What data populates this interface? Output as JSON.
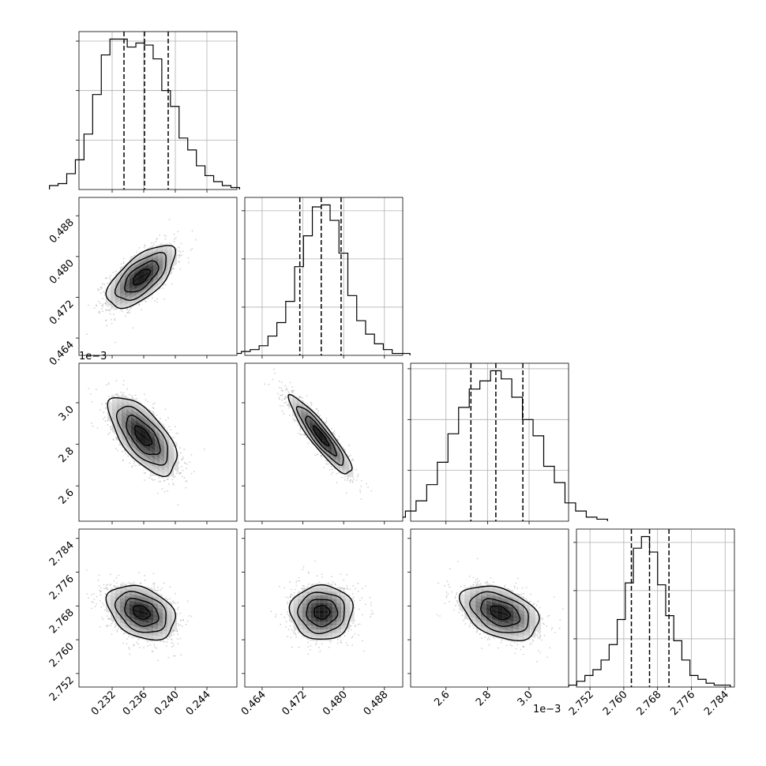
{
  "chart_data": {
    "type": "corner",
    "grid": true,
    "parameters": [
      {
        "range": [
          0.2278,
          0.2478
        ],
        "ticks": [
          0.232,
          0.236,
          0.24,
          0.244
        ],
        "tick_labels": [
          "0.232",
          "0.236",
          "0.240",
          "0.244"
        ],
        "quantiles": [
          0.2335,
          0.2361,
          0.2391
        ]
      },
      {
        "range": [
          0.4606,
          0.4916
        ],
        "ticks": [
          0.464,
          0.472,
          0.48,
          0.488
        ],
        "tick_labels": [
          "0.464",
          "0.472",
          "0.480",
          "0.488"
        ],
        "quantiles": [
          0.4714,
          0.4756,
          0.4795
        ]
      },
      {
        "range": [
          2.43,
          3.19
        ],
        "ticks": [
          2.6,
          2.8,
          3.0
        ],
        "tick_labels": [
          "2.6",
          "2.8",
          "3.0"
        ],
        "quantiles": [
          2.72,
          2.84,
          2.97
        ],
        "offset_label": "1e−3"
      },
      {
        "range": [
          2.7488,
          2.7862
        ],
        "ticks": [
          2.752,
          2.76,
          2.768,
          2.776,
          2.784
        ],
        "tick_labels": [
          "2.752",
          "2.760",
          "2.768",
          "2.776",
          "2.784"
        ],
        "quantiles": [
          2.7618,
          2.7661,
          2.7707
        ]
      }
    ],
    "histograms": [
      [
        2,
        3,
        8,
        15,
        28,
        48,
        68,
        76,
        76,
        72,
        74,
        73,
        66,
        50,
        42,
        26,
        20,
        12,
        7,
        4,
        2,
        1
      ],
      [
        1,
        2,
        3,
        5,
        10,
        17,
        28,
        46,
        62,
        77,
        78,
        70,
        53,
        31,
        18,
        11,
        6,
        3,
        1,
        1
      ],
      [
        1,
        2,
        5,
        10,
        18,
        29,
        43,
        56,
        65,
        69,
        74,
        70,
        61,
        50,
        42,
        27,
        19,
        9,
        5,
        2,
        1
      ],
      [
        1,
        3,
        6,
        9,
        14,
        22,
        35,
        54,
        72,
        78,
        70,
        53,
        37,
        24,
        14,
        6,
        4,
        2,
        1,
        1
      ]
    ],
    "pairs": [
      {
        "x_param": 0,
        "y_param": 1,
        "center": [
          0.2357,
          0.476
        ],
        "cov": [
          [
            4.6e-06,
            4.2e-06
          ],
          [
            4.2e-06,
            9.3e-06
          ]
        ]
      },
      {
        "x_param": 0,
        "y_param": 2,
        "center": [
          0.2359,
          2.84
        ],
        "cov": [
          [
            4.6e-06,
            -0.00013
          ],
          [
            -0.00013,
            0.0088
          ]
        ]
      },
      {
        "x_param": 1,
        "y_param": 2,
        "center": [
          0.4755,
          2.84
        ],
        "cov": [
          [
            9.3e-06,
            -0.00026
          ],
          [
            -0.00026,
            0.0088
          ]
        ]
      },
      {
        "x_param": 0,
        "y_param": 3,
        "center": [
          0.2357,
          2.7665
        ],
        "cov": [
          [
            4.6e-06,
            -2.3e-06
          ],
          [
            -2.3e-06,
            1.03e-05
          ]
        ]
      },
      {
        "x_param": 1,
        "y_param": 3,
        "center": [
          0.4757,
          2.7665
        ],
        "cov": [
          [
            9.3e-06,
            0
          ],
          [
            0,
            1.03e-05
          ]
        ]
      },
      {
        "x_param": 2,
        "y_param": 3,
        "center": [
          2.86,
          2.7664
        ],
        "cov": [
          [
            0.0088,
            -0.00012
          ],
          [
            -0.00012,
            1.03e-05
          ]
        ]
      }
    ]
  }
}
